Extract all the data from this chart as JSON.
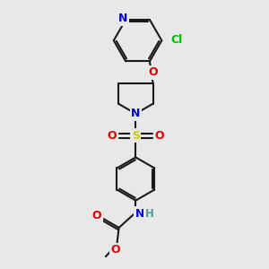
{
  "bg_color": "#e8e8e8",
  "bond_color": "#1a1a1a",
  "N_color": "#0000dd",
  "O_color": "#dd0000",
  "S_color": "#cccc00",
  "Cl_color": "#00bb00",
  "H_color": "#559999",
  "lw": 1.5,
  "dbo": 0.05,
  "fs": 8.5,
  "xlim": [
    -1.6,
    1.6
  ],
  "ylim": [
    -2.6,
    4.0
  ]
}
